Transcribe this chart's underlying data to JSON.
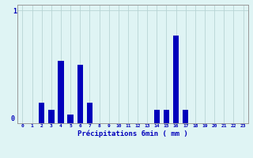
{
  "hours": [
    0,
    1,
    2,
    3,
    4,
    5,
    6,
    7,
    8,
    9,
    10,
    11,
    12,
    13,
    14,
    15,
    16,
    17,
    18,
    19,
    20,
    21,
    22,
    23
  ],
  "values": [
    0,
    0,
    0.18,
    0.12,
    0.55,
    0.08,
    0.52,
    0.18,
    0,
    0,
    0,
    0,
    0,
    0,
    0.12,
    0.12,
    0.78,
    0.12,
    0,
    0,
    0,
    0,
    0,
    0
  ],
  "bar_color": "#0000bb",
  "background_color": "#dff4f4",
  "grid_color": "#b8d4d4",
  "axis_color": "#999999",
  "text_color": "#0000bb",
  "ytick_value": 1.0,
  "xlabel": "Précipitations 6min ( mm )",
  "ylim": [
    0,
    1.05
  ],
  "xlim": [
    -0.5,
    23.5
  ]
}
